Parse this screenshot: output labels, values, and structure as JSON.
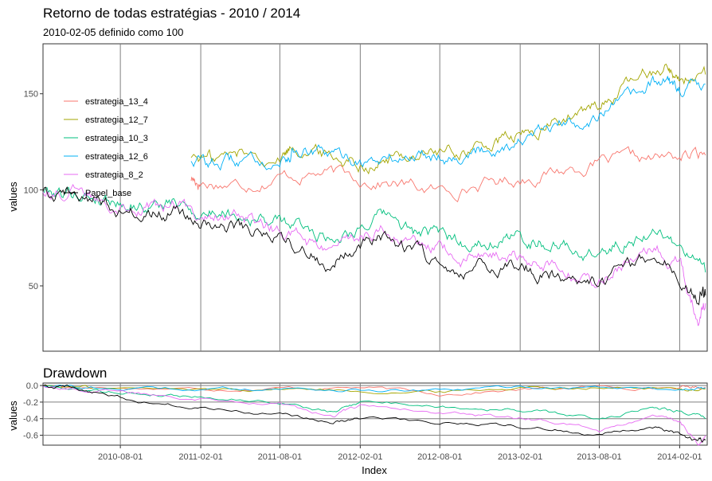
{
  "chart_data": [
    {
      "type": "line",
      "title": "Retorno de todas estratégias - 2010 / 2014",
      "subtitle": "2010-02-05 definido como 100",
      "ylabel": "values",
      "ylim": [
        16,
        176
      ],
      "yticks": [
        50,
        100,
        150
      ],
      "xlim": [
        "2010-02-05",
        "2014-04-05"
      ],
      "grid": "vertical lines at x tick dates",
      "legend_position": "top-left",
      "series": [
        {
          "name": "estrategia_13_4",
          "color": "#F8766D",
          "x": [
            "2011-01-10",
            "2011-02-01",
            "2011-05-01",
            "2011-08-01",
            "2011-11-01",
            "2012-02-01",
            "2012-05-01",
            "2012-08-01",
            "2012-11-01",
            "2013-02-01",
            "2013-05-01",
            "2013-08-01",
            "2013-11-01",
            "2014-02-01",
            "2014-04-01"
          ],
          "y": [
            106,
            104,
            103,
            107,
            109,
            106,
            103,
            99,
            103,
            106,
            110,
            114,
            115,
            117,
            118
          ]
        },
        {
          "name": "estrategia_12_7",
          "color": "#A3A500",
          "x": [
            "2011-01-10",
            "2011-03-01",
            "2011-05-01",
            "2011-08-01",
            "2011-09-01",
            "2011-11-01",
            "2012-01-01",
            "2012-03-01",
            "2012-05-01",
            "2012-07-01",
            "2012-09-01",
            "2012-11-01",
            "2013-01-01",
            "2013-03-01",
            "2013-05-01",
            "2013-07-01",
            "2013-09-01",
            "2013-11-01",
            "2014-01-01",
            "2014-02-01",
            "2014-04-01"
          ],
          "y": [
            118,
            116,
            119,
            117,
            124,
            119,
            116,
            114,
            117,
            120,
            119,
            122,
            126,
            129,
            136,
            140,
            149,
            158,
            166,
            157,
            160
          ]
        },
        {
          "name": "estrategia_10_3",
          "color": "#00BF7D",
          "x": [
            "2010-02-05",
            "2010-04-01",
            "2010-06-01",
            "2010-08-01",
            "2010-10-01",
            "2010-12-01",
            "2011-02-01",
            "2011-04-01",
            "2011-06-01",
            "2011-08-01",
            "2011-10-01",
            "2011-12-01",
            "2012-02-01",
            "2012-04-01",
            "2012-06-01",
            "2012-08-01",
            "2012-10-01",
            "2012-12-01",
            "2013-02-01",
            "2013-04-01",
            "2013-06-01",
            "2013-08-01",
            "2013-10-01",
            "2013-12-01",
            "2014-02-01",
            "2014-04-01"
          ],
          "y": [
            100,
            99,
            97,
            94,
            92,
            93,
            88,
            89,
            86,
            83,
            80,
            75,
            82,
            86,
            78,
            76,
            72,
            75,
            75,
            73,
            69,
            66,
            73,
            79,
            71,
            57
          ]
        },
        {
          "name": "estrategia_12_6",
          "color": "#00B0F6",
          "x": [
            "2011-01-10",
            "2011-03-01",
            "2011-05-01",
            "2011-08-01",
            "2011-09-01",
            "2011-11-01",
            "2012-01-01",
            "2012-03-01",
            "2012-05-01",
            "2012-07-01",
            "2012-09-01",
            "2012-11-01",
            "2013-01-01",
            "2013-03-01",
            "2013-05-01",
            "2013-07-01",
            "2013-09-01",
            "2013-11-01",
            "2014-01-01",
            "2014-02-01",
            "2014-04-01"
          ],
          "y": [
            116,
            114,
            115,
            115,
            121,
            118,
            116,
            115,
            116,
            119,
            118,
            120,
            124,
            127,
            133,
            137,
            143,
            150,
            157,
            152,
            155
          ]
        },
        {
          "name": "estrategia_8_2",
          "color": "#E76BF3",
          "x": [
            "2010-02-05",
            "2010-04-01",
            "2010-06-01",
            "2010-08-01",
            "2010-10-01",
            "2010-12-01",
            "2011-02-01",
            "2011-04-01",
            "2011-06-01",
            "2011-08-01",
            "2011-10-01",
            "2011-12-01",
            "2012-02-01",
            "2012-04-01",
            "2012-06-01",
            "2012-08-01",
            "2012-10-01",
            "2012-12-01",
            "2013-02-01",
            "2013-04-01",
            "2013-06-01",
            "2013-08-01",
            "2013-10-01",
            "2013-12-01",
            "2014-02-01",
            "2014-03-15",
            "2014-04-01"
          ],
          "y": [
            100,
            99,
            97,
            94,
            91,
            92,
            87,
            88,
            84,
            79,
            73,
            67,
            76,
            80,
            72,
            68,
            64,
            66,
            65,
            63,
            56,
            52,
            62,
            71,
            62,
            32,
            41
          ]
        },
        {
          "name": "Papel_base",
          "color": "#000000",
          "x": [
            "2010-02-05",
            "2010-04-01",
            "2010-06-01",
            "2010-08-01",
            "2010-10-01",
            "2010-12-01",
            "2011-02-01",
            "2011-04-01",
            "2011-06-01",
            "2011-08-01",
            "2011-10-01",
            "2011-12-01",
            "2012-02-01",
            "2012-04-01",
            "2012-06-01",
            "2012-08-01",
            "2012-10-01",
            "2012-12-01",
            "2013-02-01",
            "2013-04-01",
            "2013-06-01",
            "2013-08-01",
            "2013-10-01",
            "2013-12-01",
            "2014-02-01",
            "2014-03-15",
            "2014-04-01"
          ],
          "y": [
            100,
            100,
            96,
            90,
            87,
            88,
            82,
            82,
            79,
            75,
            68,
            62,
            72,
            76,
            67,
            63,
            60,
            61,
            59,
            57,
            52,
            50,
            60,
            66,
            57,
            45,
            45
          ]
        }
      ]
    },
    {
      "type": "line",
      "title": "Drawdown",
      "xlabel": "Index",
      "ylabel": "values",
      "ylim": [
        -0.72,
        0.03
      ],
      "yticks": [
        0.0,
        -0.2,
        -0.4,
        -0.6
      ],
      "ytick_labels": [
        "0.0",
        "-0.2",
        "-0.4",
        "-0.6"
      ],
      "xlim": [
        "2010-02-05",
        "2014-04-05"
      ],
      "xticks": [
        "2010-08-01",
        "2011-02-01",
        "2011-08-01",
        "2012-02-01",
        "2012-08-01",
        "2013-02-01",
        "2013-08-01",
        "2014-02-01"
      ],
      "grid": "horizontal and vertical lines",
      "series": [
        {
          "name": "estrategia_13_4",
          "color": "#F8766D",
          "x": [
            "2010-02-05",
            "2010-06-01",
            "2011-02-01",
            "2011-08-01",
            "2012-02-01",
            "2012-08-01",
            "2013-02-01",
            "2013-08-01",
            "2014-02-01",
            "2014-04-01"
          ],
          "y": [
            0,
            -0.02,
            -0.04,
            -0.03,
            -0.02,
            -0.1,
            -0.05,
            -0.02,
            -0.02,
            -0.02
          ]
        },
        {
          "name": "estrategia_12_7",
          "color": "#A3A500",
          "x": [
            "2010-02-05",
            "2010-06-01",
            "2011-02-01",
            "2011-08-01",
            "2012-02-01",
            "2012-08-01",
            "2013-02-01",
            "2013-08-01",
            "2014-02-01",
            "2014-04-01"
          ],
          "y": [
            0,
            -0.03,
            -0.05,
            -0.03,
            -0.06,
            -0.08,
            -0.02,
            -0.01,
            -0.05,
            -0.04
          ]
        },
        {
          "name": "estrategia_10_3",
          "color": "#00BF7D",
          "x": [
            "2010-02-05",
            "2010-06-01",
            "2010-10-01",
            "2011-02-01",
            "2011-08-01",
            "2011-12-01",
            "2012-02-01",
            "2012-08-01",
            "2012-12-01",
            "2013-04-01",
            "2013-08-01",
            "2013-12-01",
            "2014-02-01",
            "2014-04-01"
          ],
          "y": [
            0,
            -0.06,
            -0.1,
            -0.13,
            -0.2,
            -0.33,
            -0.18,
            -0.25,
            -0.28,
            -0.32,
            -0.41,
            -0.25,
            -0.3,
            -0.4
          ]
        },
        {
          "name": "estrategia_12_6",
          "color": "#00B0F6",
          "x": [
            "2010-02-05",
            "2010-06-01",
            "2011-02-01",
            "2011-08-01",
            "2012-02-01",
            "2012-08-01",
            "2013-02-01",
            "2013-08-01",
            "2014-02-01",
            "2014-04-01"
          ],
          "y": [
            0,
            -0.03,
            -0.05,
            -0.03,
            -0.05,
            -0.07,
            -0.02,
            -0.02,
            -0.05,
            -0.03
          ]
        },
        {
          "name": "estrategia_8_2",
          "color": "#E76BF3",
          "x": [
            "2010-02-05",
            "2010-06-01",
            "2010-10-01",
            "2011-02-01",
            "2011-08-01",
            "2011-12-01",
            "2012-02-01",
            "2012-08-01",
            "2012-12-01",
            "2013-04-01",
            "2013-08-01",
            "2013-12-01",
            "2014-02-01",
            "2014-03-15",
            "2014-04-01"
          ],
          "y": [
            0,
            -0.06,
            -0.1,
            -0.14,
            -0.22,
            -0.38,
            -0.22,
            -0.32,
            -0.37,
            -0.42,
            -0.55,
            -0.38,
            -0.43,
            -0.7,
            -0.62
          ]
        },
        {
          "name": "Papel_base",
          "color": "#000000",
          "x": [
            "2010-02-05",
            "2010-04-01",
            "2010-06-01",
            "2010-10-01",
            "2011-02-01",
            "2011-08-01",
            "2011-12-01",
            "2012-02-01",
            "2012-08-01",
            "2012-12-01",
            "2013-04-01",
            "2013-08-01",
            "2013-12-01",
            "2014-02-01",
            "2014-03-15",
            "2014-04-01"
          ],
          "y": [
            0,
            0,
            -0.08,
            -0.2,
            -0.27,
            -0.35,
            -0.45,
            -0.38,
            -0.45,
            -0.47,
            -0.52,
            -0.58,
            -0.5,
            -0.58,
            -0.68,
            -0.65
          ]
        }
      ]
    }
  ]
}
